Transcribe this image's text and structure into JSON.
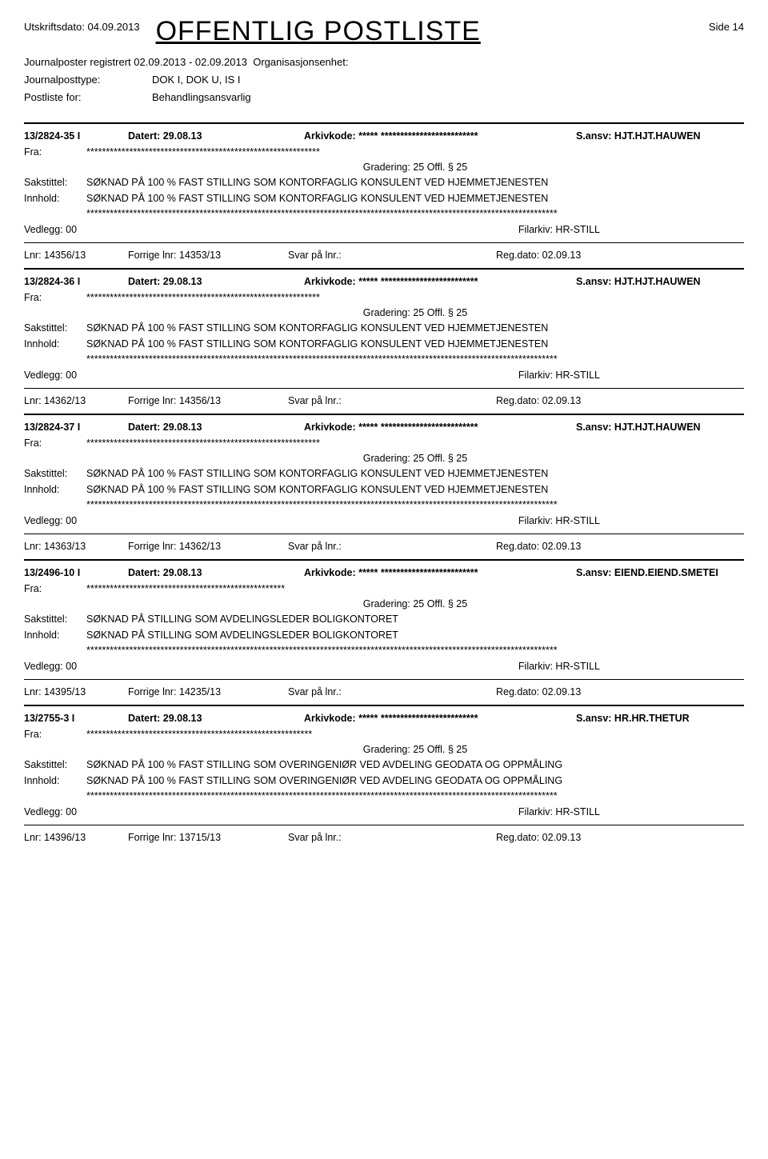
{
  "header": {
    "print_date_label": "Utskriftsdato:",
    "print_date": "04.09.2013",
    "title": "OFFENTLIG POSTLISTE",
    "page_side": "Side 14"
  },
  "subheader": {
    "reg_label": "Journalposter registrert",
    "reg_range": "02.09.2013 - 02.09.2013",
    "org_label": "Organisasjonsenhet:",
    "type_label": "Journalposttype:",
    "type_value": "DOK I, DOK U, IS I",
    "postliste_label": "Postliste for:",
    "postliste_value": "Behandlingsansvarlig"
  },
  "labels": {
    "datert": "Datert:",
    "arkivkode": "Arkivkode:",
    "sansv": "S.ansv:",
    "fra": "Fra:",
    "gradering": "Gradering: 25 Offl. § 25",
    "sakstittel": "Sakstittel:",
    "innhold": "Innhold:",
    "vedlegg": "Vedlegg:",
    "filarkiv": "Filarkiv:",
    "lnr": "Lnr:",
    "forrige": "Forrige lnr:",
    "svar": "Svar på lnr.:",
    "regdato": "Reg.dato:"
  },
  "entries": [
    {
      "case_id": "13/2824-35 I",
      "datert": "29.08.13",
      "arkivkode": "***** *************************",
      "sansv": "HJT.HJT.HAUWEN",
      "fra": "************************************************************",
      "sakstittel": "SØKNAD PÅ 100 % FAST STILLING SOM KONTORFAGLIG KONSULENT VED HJEMMETJENESTEN",
      "innhold": "SØKNAD PÅ 100 % FAST STILLING SOM KONTORFAGLIG KONSULENT VED HJEMMETJENESTEN",
      "stars": "*************************************************************************************************************************",
      "vedlegg": "00",
      "filarkiv": "HR-STILL",
      "lnr": "14356/13",
      "forrige": "14353/13",
      "regdato": "02.09.13"
    },
    {
      "case_id": "13/2824-36 I",
      "datert": "29.08.13",
      "arkivkode": "***** *************************",
      "sansv": "HJT.HJT.HAUWEN",
      "fra": "************************************************************",
      "sakstittel": "SØKNAD PÅ 100 % FAST STILLING SOM KONTORFAGLIG KONSULENT VED HJEMMETJENESTEN",
      "innhold": "SØKNAD PÅ 100 % FAST STILLING SOM KONTORFAGLIG KONSULENT VED HJEMMETJENESTEN",
      "stars": "*************************************************************************************************************************",
      "vedlegg": "00",
      "filarkiv": "HR-STILL",
      "lnr": "14362/13",
      "forrige": "14356/13",
      "regdato": "02.09.13"
    },
    {
      "case_id": "13/2824-37 I",
      "datert": "29.08.13",
      "arkivkode": "***** *************************",
      "sansv": "HJT.HJT.HAUWEN",
      "fra": "************************************************************",
      "sakstittel": "SØKNAD PÅ 100 % FAST STILLING SOM KONTORFAGLIG KONSULENT VED HJEMMETJENESTEN",
      "innhold": "SØKNAD PÅ 100 % FAST STILLING SOM KONTORFAGLIG KONSULENT VED HJEMMETJENESTEN",
      "stars": "*************************************************************************************************************************",
      "vedlegg": "00",
      "filarkiv": "HR-STILL",
      "lnr": "14363/13",
      "forrige": "14362/13",
      "regdato": "02.09.13"
    },
    {
      "case_id": "13/2496-10 I",
      "datert": "29.08.13",
      "arkivkode": "***** *************************",
      "sansv": "EIEND.EIEND.SMETEI",
      "fra": "***************************************************",
      "sakstittel": "SØKNAD PÅ STILLING SOM AVDELINGSLEDER BOLIGKONTORET",
      "innhold": "SØKNAD PÅ STILLING SOM AVDELINGSLEDER BOLIGKONTORET",
      "stars": "*************************************************************************************************************************",
      "vedlegg": "00",
      "filarkiv": "HR-STILL",
      "lnr": "14395/13",
      "forrige": "14235/13",
      "regdato": "02.09.13"
    },
    {
      "case_id": "13/2755-3 I",
      "datert": "29.08.13",
      "arkivkode": "***** *************************",
      "sansv": "HR.HR.THETUR",
      "fra": "**********************************************************",
      "sakstittel": "SØKNAD PÅ 100 % FAST STILLING SOM OVERINGENIØR VED AVDELING GEODATA OG OPPMÅLING",
      "innhold": "SØKNAD PÅ 100 % FAST STILLING SOM OVERINGENIØR VED AVDELING GEODATA OG OPPMÅLING",
      "stars": "*************************************************************************************************************************",
      "vedlegg": "00",
      "filarkiv": "HR-STILL",
      "lnr": "14396/13",
      "forrige": "13715/13",
      "regdato": "02.09.13"
    }
  ]
}
